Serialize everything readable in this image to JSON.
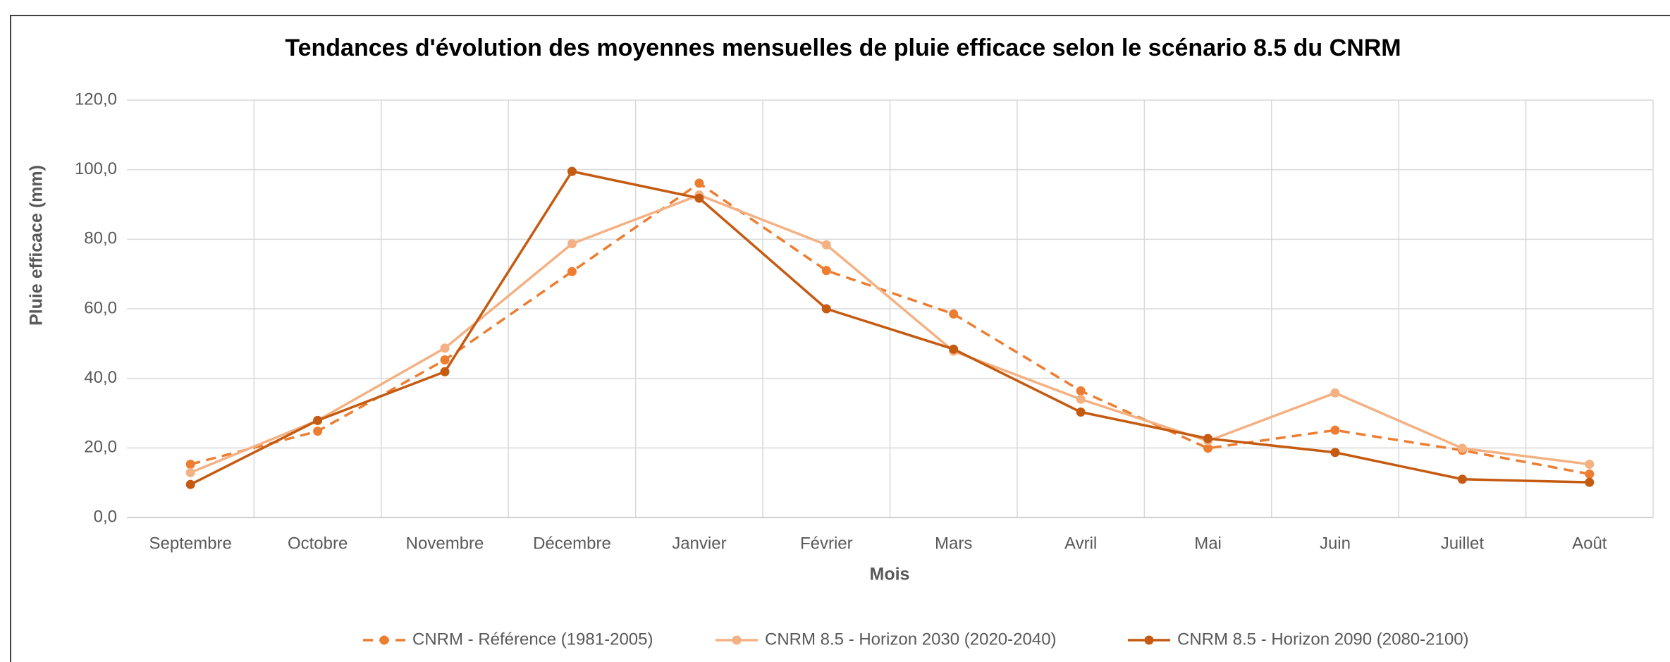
{
  "chart_data": {
    "type": "line",
    "title": "Tendances d'évolution des moyennes mensuelles de pluie efficace selon le scénario 8.5 du CNRM",
    "x_label": "Mois",
    "y_label": "Pluie efficace (mm)",
    "categories": [
      "Septembre",
      "Octobre",
      "Novembre",
      "Décembre",
      "Janvier",
      "Février",
      "Mars",
      "Avril",
      "Mai",
      "Juin",
      "Juillet",
      "Août"
    ],
    "series": [
      {
        "name": "CNRM - Référence (1981-2005)",
        "color": "#ED7D31",
        "dashed": true,
        "values": [
          15.3,
          24.8,
          45.3,
          70.7,
          96.1,
          71.0,
          58.5,
          36.4,
          19.9,
          25.1,
          19.3,
          12.5
        ]
      },
      {
        "name": "CNRM 8.5 - Horizon 2030 (2020-2040)",
        "color": "#F4B183",
        "dashed": false,
        "values": [
          12.9,
          27.9,
          48.7,
          78.7,
          92.7,
          78.4,
          47.8,
          34.0,
          22.0,
          35.8,
          19.9,
          15.3
        ]
      },
      {
        "name": "CNRM 8.5 - Horizon 2090 (2080-2100)",
        "color": "#C55A11",
        "dashed": false,
        "values": [
          9.5,
          27.9,
          41.9,
          99.5,
          91.8,
          60.0,
          48.4,
          30.3,
          22.7,
          18.7,
          11.0,
          10.1
        ]
      }
    ],
    "ylim": [
      0,
      120
    ],
    "yticks": [
      {
        "value": 0,
        "label": "0,0"
      },
      {
        "value": 20,
        "label": "20,0"
      },
      {
        "value": 40,
        "label": "40,0"
      },
      {
        "value": 60,
        "label": "60,0"
      },
      {
        "value": 80,
        "label": "80,0"
      },
      {
        "value": 100,
        "label": "100,0"
      },
      {
        "value": 120,
        "label": "120,0"
      }
    ],
    "grid": true,
    "legend": "bottom"
  }
}
